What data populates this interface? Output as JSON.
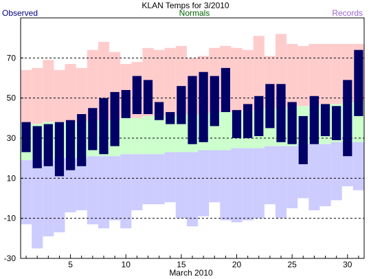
{
  "chart_data": {
    "type": "bar",
    "title": "KLAN Temps for 3/2010",
    "legend": {
      "observed": "Observed",
      "normals": "Normals",
      "records": "Records"
    },
    "xlabel": "March 2010",
    "ylabel": "",
    "xlim": [
      0.5,
      31.5
    ],
    "ylim": [
      -30,
      90
    ],
    "x_ticks": [
      5,
      10,
      15,
      20,
      25,
      30
    ],
    "y_ticks": [
      -30,
      -10,
      10,
      30,
      50,
      70
    ],
    "grid": "dashed horizontal at y ticks",
    "days": [
      1,
      2,
      3,
      4,
      5,
      6,
      7,
      8,
      9,
      10,
      11,
      12,
      13,
      14,
      15,
      16,
      17,
      18,
      19,
      20,
      21,
      22,
      23,
      24,
      25,
      26,
      27,
      28,
      29,
      30,
      31
    ],
    "record_high": [
      64,
      65,
      69,
      64,
      67,
      65,
      74,
      78,
      73,
      67,
      68,
      75,
      74,
      75,
      76,
      70,
      71,
      75,
      76,
      75,
      74,
      81,
      71,
      82,
      77,
      76,
      77,
      77,
      77,
      77,
      77
    ],
    "record_low": [
      -13,
      -25,
      -19,
      -17,
      -7,
      -6,
      -13,
      -15,
      -11,
      -15,
      -6,
      -3,
      -3,
      -2,
      -10,
      -14,
      -9,
      -2,
      -11,
      -12,
      -11,
      -10,
      -3,
      -10,
      -5,
      0,
      -6,
      -4,
      -1,
      6,
      4
    ],
    "normal_high": [
      37,
      37,
      38,
      38,
      38,
      38,
      39,
      39,
      39,
      40,
      40,
      41,
      41,
      41,
      42,
      42,
      42,
      43,
      43,
      43,
      44,
      44,
      45,
      45,
      46,
      46,
      46,
      47,
      47,
      48,
      48
    ],
    "normal_low": [
      19,
      19,
      19,
      20,
      20,
      20,
      21,
      21,
      21,
      22,
      22,
      22,
      22,
      23,
      23,
      23,
      24,
      24,
      24,
      25,
      25,
      25,
      26,
      26,
      26,
      27,
      27,
      27,
      28,
      28,
      28
    ],
    "obs_high": [
      38,
      36,
      37,
      38,
      39,
      42,
      45,
      50,
      53,
      54,
      61,
      59,
      48,
      43,
      56,
      61,
      63,
      61,
      65,
      44,
      47,
      51,
      57,
      57,
      48,
      41,
      51,
      47,
      46,
      59,
      74
    ],
    "obs_low": [
      23,
      15,
      16,
      11,
      14,
      16,
      24,
      22,
      26,
      40,
      42,
      42,
      39,
      37,
      37,
      27,
      28,
      36,
      43,
      30,
      30,
      31,
      35,
      28,
      27,
      17,
      27,
      31,
      29,
      21,
      41
    ],
    "colors": {
      "observed": "#000066",
      "normals_band": "#ccffcc",
      "record_high_band": "#ffcccc",
      "record_low_band": "#ccccff",
      "observed_legend": "#000080",
      "normals_legend": "#006400",
      "records_legend": "#9966cc",
      "grid": "#000000"
    }
  }
}
